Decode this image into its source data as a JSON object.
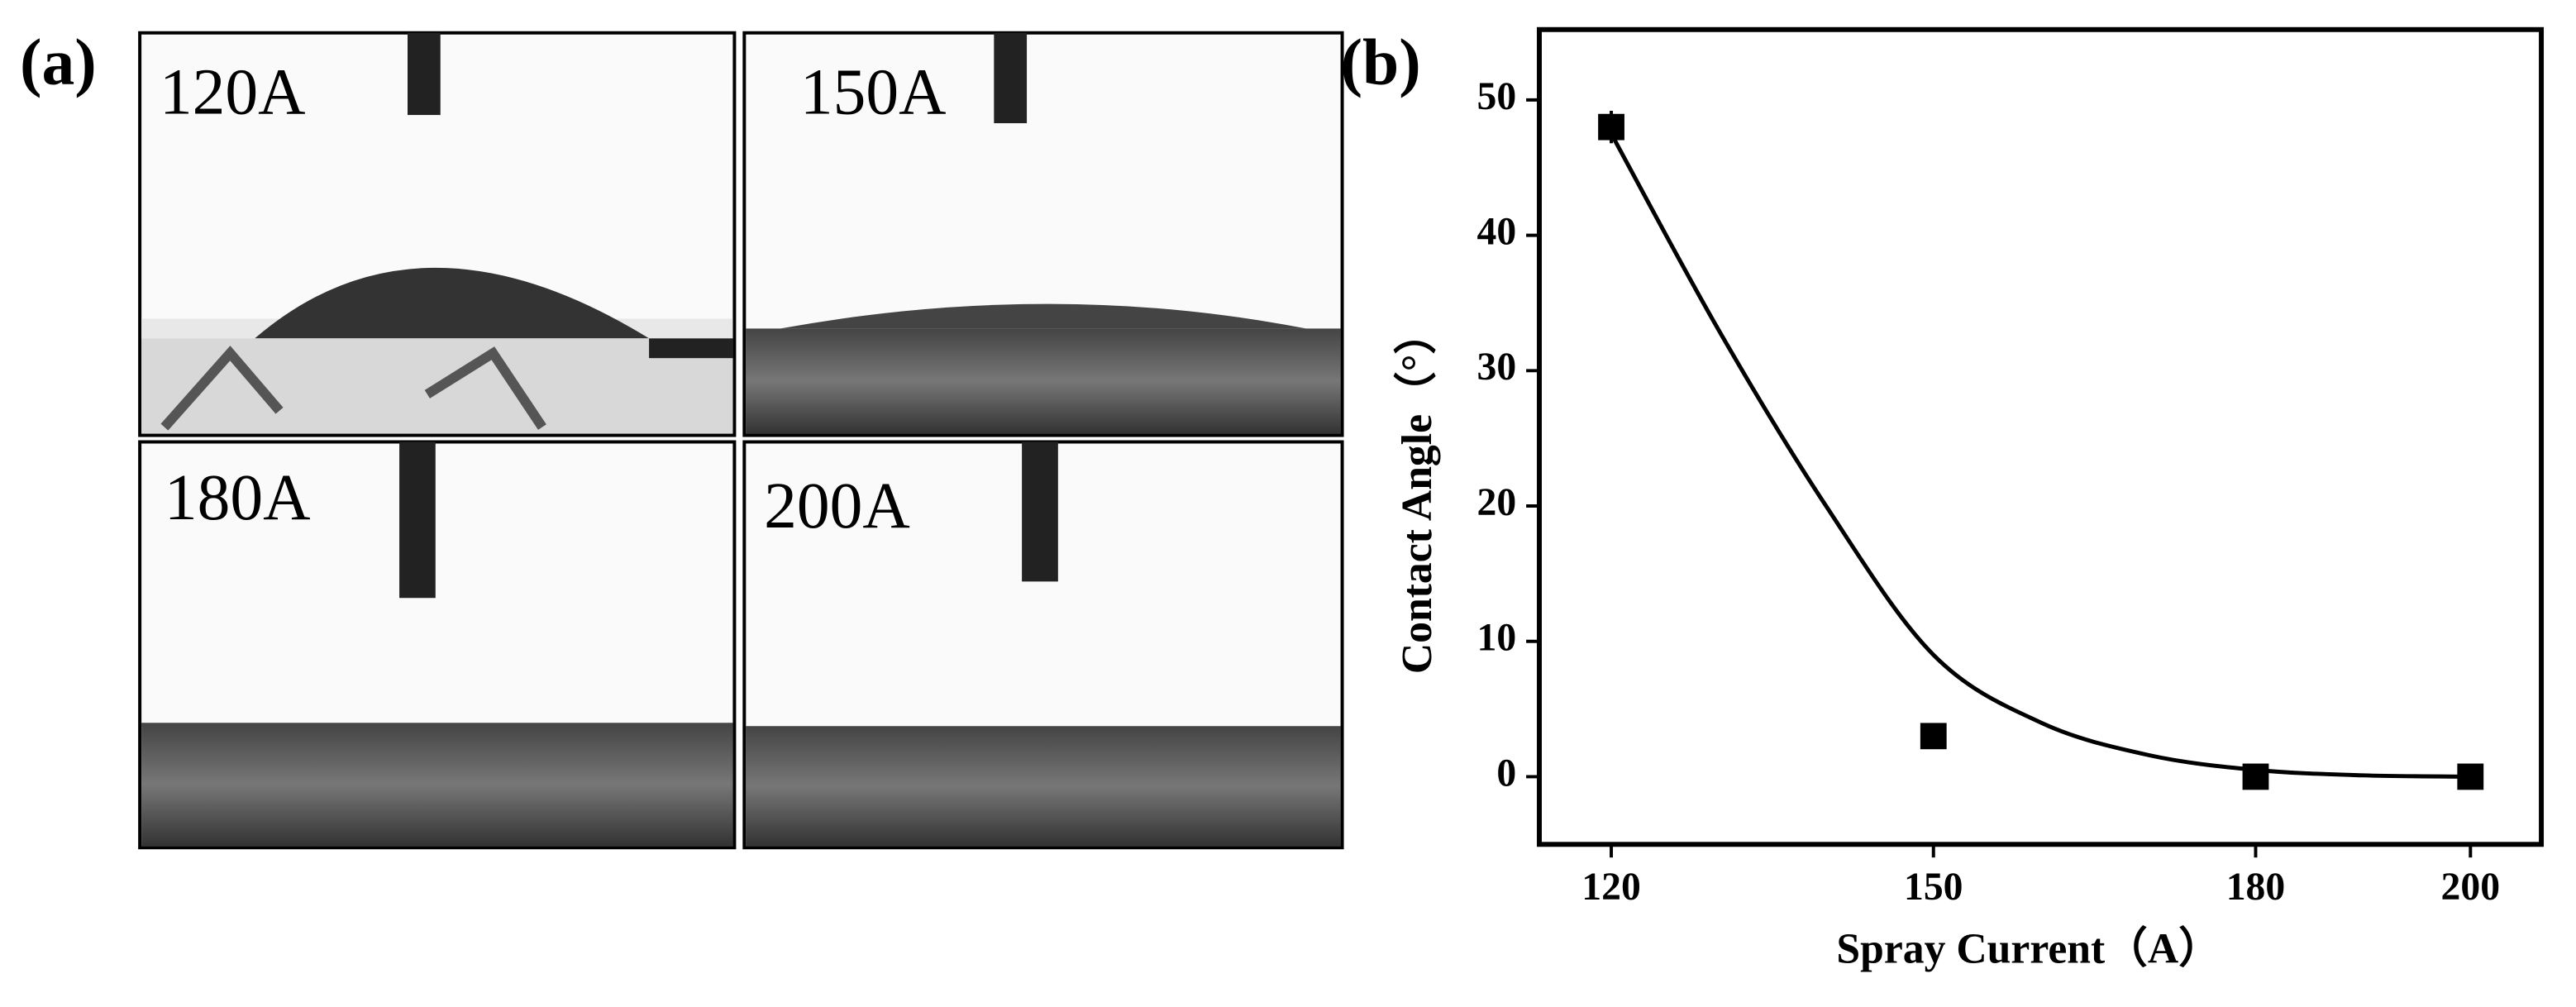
{
  "figure": {
    "panel_labels": [
      "(a)",
      "(b)"
    ],
    "photos": [
      "120A",
      "150A",
      "180A",
      "200A"
    ]
  },
  "chart_data": {
    "type": "scatter",
    "x_label": "Spray Current（A）",
    "y_label": "Contact Angle（°）",
    "xlim": [
      113.3,
      206.6
    ],
    "xticks": [
      120,
      150,
      180,
      200
    ],
    "ylim": [
      -5,
      55.2
    ],
    "yticks": [
      0,
      10,
      20,
      30,
      40,
      50
    ],
    "color": "#000000",
    "series": [
      {
        "type": "scatter",
        "x": [
          120,
          150,
          180,
          200
        ],
        "values": [
          48,
          3,
          0,
          0
        ],
        "errors": [
          1.2,
          0.6,
          0.3,
          0.3
        ]
      },
      {
        "type": "line",
        "x": [
          120,
          130,
          140,
          150,
          160,
          170,
          180,
          190,
          200
        ],
        "values": [
          47.5,
          33,
          20,
          9,
          4,
          1.6,
          0.5,
          0.1,
          0
        ]
      }
    ]
  }
}
